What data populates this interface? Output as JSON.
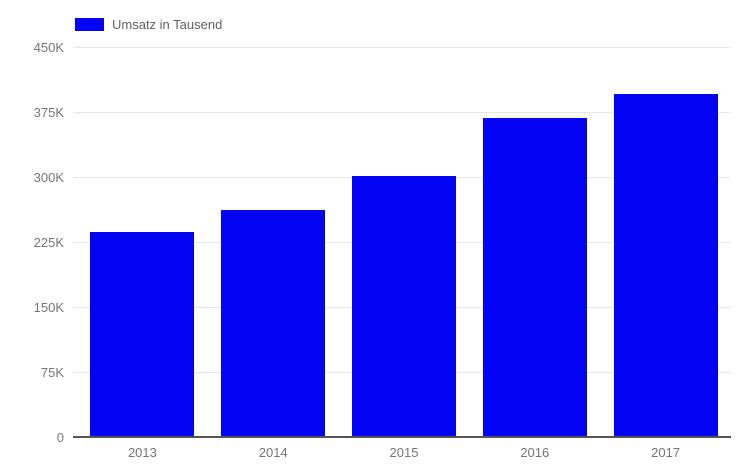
{
  "legend": {
    "swatch_icon": "blue-square-swatch"
  },
  "colors": {
    "bar": "#0404f4",
    "grid": "#e6e6e6",
    "baseline": "#555555",
    "axis_text": "#757575",
    "legend_text": "#616161",
    "background": "#ffffff"
  },
  "chart_data": {
    "type": "bar",
    "title": "",
    "categories": [
      "2013",
      "2014",
      "2015",
      "2016",
      "2017"
    ],
    "series": [
      {
        "name": "Umsatz in Tausend",
        "values": [
          236,
          262,
          301,
          368,
          396
        ]
      }
    ],
    "xlabel": "",
    "ylabel": "",
    "ylim": [
      0,
      450
    ],
    "yticks": [
      {
        "value": 0,
        "label": "0"
      },
      {
        "value": 75,
        "label": "75K"
      },
      {
        "value": 150,
        "label": "150K"
      },
      {
        "value": 225,
        "label": "225K"
      },
      {
        "value": 300,
        "label": "300K"
      },
      {
        "value": 375,
        "label": "375K"
      },
      {
        "value": 450,
        "label": "450K"
      }
    ],
    "grid": true,
    "legend_position": "top-left"
  }
}
